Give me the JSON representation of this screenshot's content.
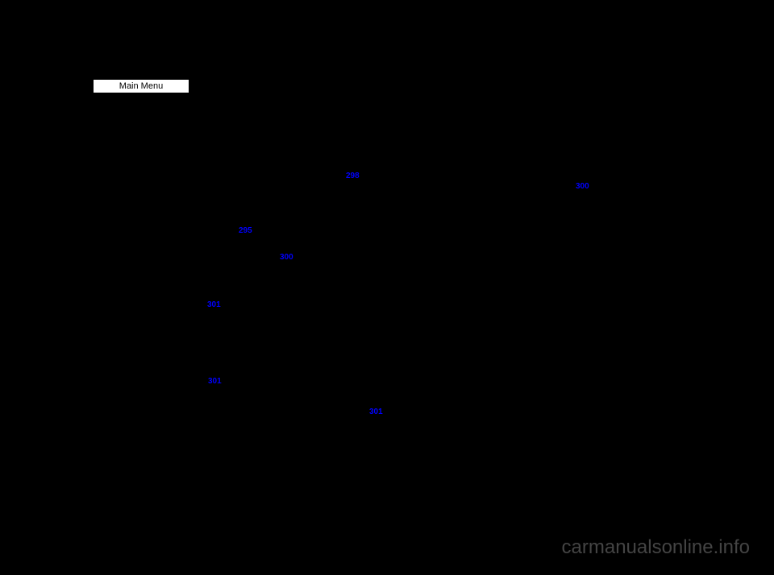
{
  "header": {
    "mainMenuLabel": "Main Menu"
  },
  "links": {
    "link1": "298",
    "link2": "295",
    "link3": "300",
    "link4": "301",
    "link5": "301",
    "link6": "301",
    "link7": "300"
  },
  "watermark": "carmanualsonline.info"
}
